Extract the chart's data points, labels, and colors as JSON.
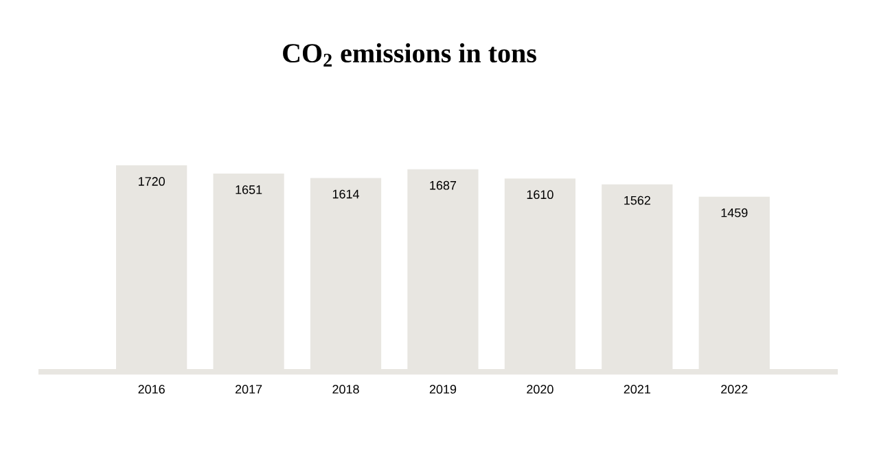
{
  "chart_data": {
    "type": "bar",
    "title": "CO$_{2}$ emissions in tons",
    "categories": [
      "2016",
      "2017",
      "2018",
      "2019",
      "2020",
      "2021",
      "2022"
    ],
    "values": [
      1720,
      1651,
      1614,
      1687,
      1610,
      1562,
      1459
    ],
    "color": "#e8e6e1",
    "data_labels": true
  }
}
